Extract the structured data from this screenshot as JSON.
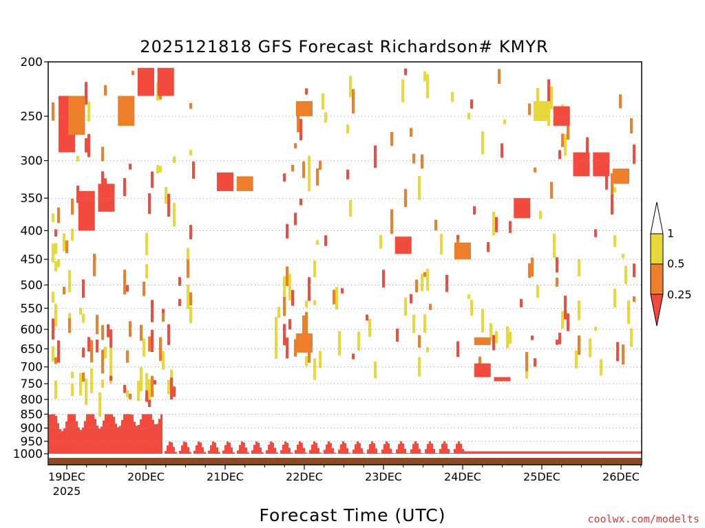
{
  "chart_data": {
    "type": "heatmap",
    "title": "2025121818 GFS Forecast Richardson# KMYR",
    "xlabel": "Forecast Time (UTC)",
    "ylabel": "",
    "credit": "coolwx.com/modelts",
    "y_ticks": [
      "200",
      "250",
      "300",
      "350",
      "400",
      "450",
      "500",
      "550",
      "600",
      "650",
      "700",
      "750",
      "800",
      "850",
      "900",
      "950",
      "1000"
    ],
    "y_range": [
      1000,
      200
    ],
    "x_ticks": [
      {
        "label": "19DEC",
        "sub": "2025"
      },
      {
        "label": "20DEC",
        "sub": ""
      },
      {
        "label": "21DEC",
        "sub": ""
      },
      {
        "label": "22DEC",
        "sub": ""
      },
      {
        "label": "23DEC",
        "sub": ""
      },
      {
        "label": "24DEC",
        "sub": ""
      },
      {
        "label": "25DEC",
        "sub": ""
      },
      {
        "label": "26DEC",
        "sub": ""
      }
    ],
    "x_range_days": [
      "18DEC 18Z",
      "26DEC 06Z"
    ],
    "colorbar": {
      "labels": [
        "1",
        "0.5",
        "0.25"
      ],
      "colors": {
        "high": "#e8d838",
        "mid": "#ee7f2a",
        "low": "#f24a3c"
      }
    },
    "legend": "colorbar right",
    "grid": "dotted horizontal at pressure levels",
    "clusters": [
      {
        "t": "19DEC 00Z",
        "p": [
          230,
          290
        ],
        "v": 0.2
      },
      {
        "t": "19DEC 03Z",
        "p": [
          230,
          270
        ],
        "v": 0.35
      },
      {
        "t": "19DEC 06Z",
        "p": [
          340,
          400
        ],
        "v": 0.2
      },
      {
        "t": "19DEC 12Z",
        "p": [
          330,
          370
        ],
        "v": 0.2
      },
      {
        "t": "19DEC 18Z",
        "p": [
          230,
          260
        ],
        "v": 0.35
      },
      {
        "t": "20DEC 00Z",
        "p": [
          205,
          230
        ],
        "v": 0.2
      },
      {
        "t": "20DEC 06Z",
        "p": [
          205,
          230
        ],
        "v": 0.2
      },
      {
        "t": "21DEC 00Z",
        "p": [
          315,
          340
        ],
        "v": 0.2
      },
      {
        "t": "21DEC 06Z",
        "p": [
          320,
          340
        ],
        "v": 0.35
      },
      {
        "t": "22DEC 00Z",
        "p": [
          235,
          250
        ],
        "v": 0.35
      },
      {
        "t": "22DEC 00Z",
        "p": [
          610,
          660
        ],
        "v": 0.35
      },
      {
        "t": "23DEC 06Z",
        "p": [
          410,
          440
        ],
        "v": 0.2
      },
      {
        "t": "24DEC 00Z",
        "p": [
          420,
          450
        ],
        "v": 0.35
      },
      {
        "t": "24DEC 06Z",
        "p": [
          620,
          640
        ],
        "v": 0.35
      },
      {
        "t": "24DEC 06Z",
        "p": [
          690,
          730
        ],
        "v": 0.2
      },
      {
        "t": "24DEC 12Z",
        "p": [
          730,
          740
        ],
        "v": 0.2
      },
      {
        "t": "24DEC 18Z",
        "p": [
          350,
          380
        ],
        "v": 0.2
      },
      {
        "t": "25DEC 00Z",
        "p": [
          235,
          255
        ],
        "v": 0.5
      },
      {
        "t": "25DEC 06Z",
        "p": [
          240,
          260
        ],
        "v": 0.2
      },
      {
        "t": "25DEC 12Z",
        "p": [
          290,
          320
        ],
        "v": 0.2
      },
      {
        "t": "25DEC 18Z",
        "p": [
          290,
          320
        ],
        "v": 0.2
      },
      {
        "t": "26DEC 00Z",
        "p": [
          310,
          330
        ],
        "v": 0.35
      }
    ]
  }
}
